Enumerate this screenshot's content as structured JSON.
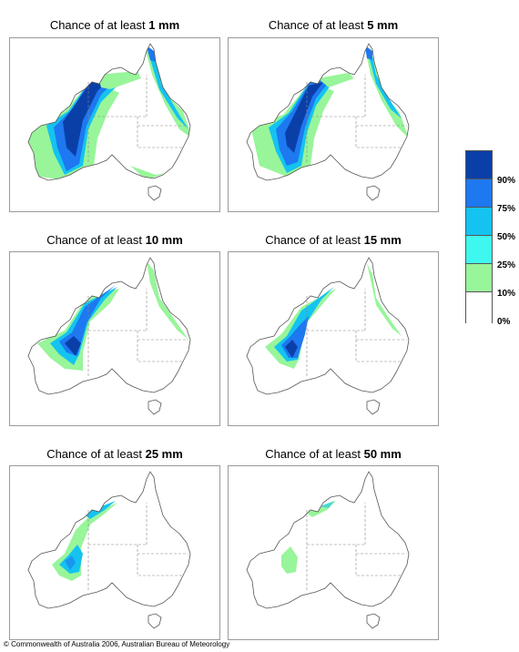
{
  "panels": [
    {
      "title_prefix": "Chance of at least ",
      "amount": "1 mm"
    },
    {
      "title_prefix": "Chance of at least ",
      "amount": "5 mm"
    },
    {
      "title_prefix": "Chance of at least ",
      "amount": "10 mm"
    },
    {
      "title_prefix": "Chance of at least ",
      "amount": "15 mm"
    },
    {
      "title_prefix": "Chance of at least ",
      "amount": "25 mm"
    },
    {
      "title_prefix": "Chance of at least ",
      "amount": "50 mm"
    }
  ],
  "legend": {
    "labels": [
      "90%",
      "75%",
      "50%",
      "25%",
      "10%",
      "0%"
    ],
    "colors": [
      "#0a3fa8",
      "#1e78f0",
      "#14c3f0",
      "#3ef7ee",
      "#98f59a",
      "#ffffff"
    ]
  },
  "copyright": "© Commonwealth of Australia 2006, Australian Bureau of Meteorology"
}
